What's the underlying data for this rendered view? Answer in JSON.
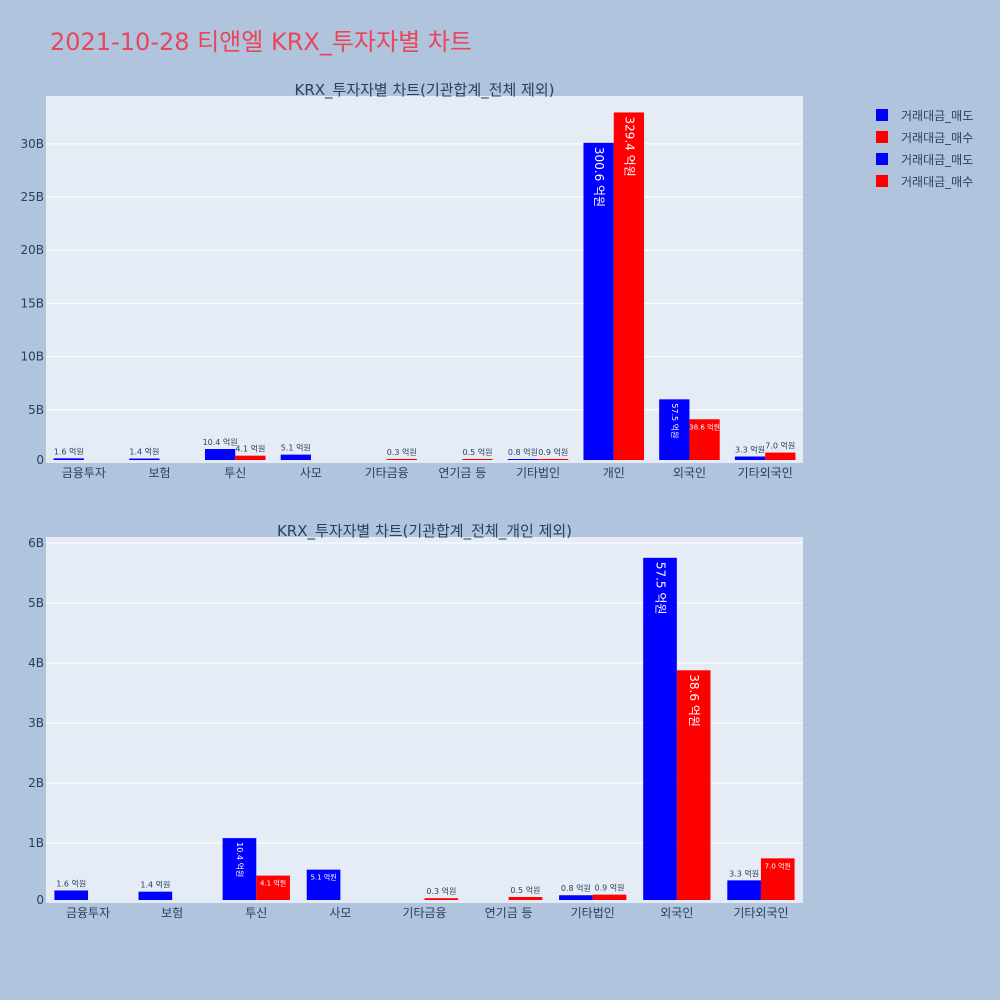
{
  "page_title": "2021-10-28 티앤엘 KRX_투자자별 차트",
  "colors": {
    "sell": "#0000ff",
    "buy": "#ff0000",
    "plot_bg": "#e5ecf6",
    "page_bg": "#b0c4de",
    "title": "#e8475a"
  },
  "legend": [
    {
      "label": "거래대금_매도",
      "color": "#0000ff"
    },
    {
      "label": "거래대금_매수",
      "color": "#ff0000"
    },
    {
      "label": "거래대금_매도",
      "color": "#0000ff"
    },
    {
      "label": "거래대금_매수",
      "color": "#ff0000"
    }
  ],
  "chart_data": [
    {
      "type": "bar",
      "title": "KRX_투자자별 차트(기관합계_전체 제외)",
      "categories": [
        "금융투자",
        "보험",
        "투신",
        "사모",
        "기타금융",
        "연기금 등",
        "기타법인",
        "개인",
        "외국인",
        "기타외국인"
      ],
      "y_ticks": [
        "0",
        "5B",
        "10B",
        "15B",
        "20B",
        "25B",
        "30B"
      ],
      "ylim": [
        0,
        34.5
      ],
      "series": [
        {
          "name": "거래대금_매도",
          "values": [
            0.16,
            0.14,
            1.04,
            0.51,
            0,
            0,
            0.08,
            30.06,
            5.75,
            0.33
          ],
          "labels": [
            "1.6 억원",
            "1.4 억원",
            "10.4 억원",
            "5.1 억원",
            "",
            "",
            "0.8 억원",
            "300.6 억원",
            "57.5 억원",
            "3.3 억원"
          ]
        },
        {
          "name": "거래대금_매수",
          "values": [
            0,
            0,
            0.41,
            0,
            0.03,
            0.05,
            0.09,
            32.94,
            3.86,
            0.7
          ],
          "labels": [
            "",
            "",
            "4.1 억원",
            "",
            "0.3 억원",
            "0.5 억원",
            "0.9 억원",
            "329.4 억원",
            "38.6 억원",
            "7.0 억원"
          ]
        }
      ]
    },
    {
      "type": "bar",
      "title": "KRX_투자자별 차트(기관합계_전체_개인 제외)",
      "categories": [
        "금융투자",
        "보험",
        "투신",
        "사모",
        "기타금융",
        "연기금 등",
        "기타법인",
        "외국인",
        "기타외국인"
      ],
      "y_ticks": [
        "0",
        "1B",
        "2B",
        "3B",
        "4B",
        "5B",
        "6B"
      ],
      "ylim": [
        0,
        6.1
      ],
      "series": [
        {
          "name": "거래대금_매도",
          "values": [
            0.16,
            0.14,
            1.04,
            0.51,
            0,
            0,
            0.08,
            5.75,
            0.33
          ],
          "labels": [
            "1.6 억원",
            "1.4 억원",
            "10.4 억원",
            "5.1 억원",
            "",
            "",
            "0.8 억원",
            "57.5 억원",
            "3.3 억원"
          ]
        },
        {
          "name": "거래대금_매수",
          "values": [
            0,
            0,
            0.41,
            0,
            0.03,
            0.05,
            0.09,
            3.86,
            0.7
          ],
          "labels": [
            "",
            "",
            "4.1 억원",
            "",
            "0.3 억원",
            "0.5 억원",
            "0.9 억원",
            "38.6 억원",
            "7.0 억원"
          ]
        }
      ]
    }
  ]
}
